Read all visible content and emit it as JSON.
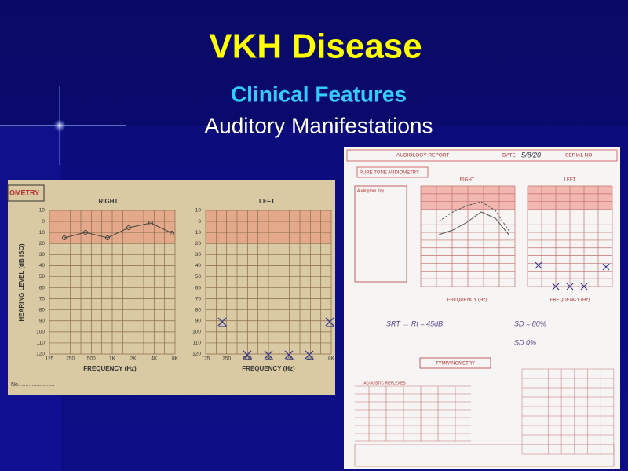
{
  "slide": {
    "title": "VKH Disease",
    "subtitle": "Clinical Features",
    "heading": "Auditory Manifestations"
  },
  "left_audiogram": {
    "header": "OMETRY",
    "right_label": "RIGHT",
    "left_label": "LEFT",
    "y_axis_label": "HEARING LEVEL (dB ISO)",
    "x_axis_label": "FREQUENCY (Hz)",
    "y_ticks": [
      "-10",
      "0",
      "10",
      "20",
      "30",
      "40",
      "50",
      "60",
      "70",
      "80",
      "90",
      "100",
      "110",
      "120"
    ],
    "x_ticks": [
      "125",
      "250",
      "500",
      "1K",
      "2K",
      "4K",
      "8K"
    ],
    "footer": "No. ......................"
  },
  "audiology_report": {
    "title": "AUDIOLOGY REPORT",
    "date_label": "DATE",
    "date": "5/8/20",
    "serial_label": "SERIAL NO.",
    "pure_tone": "PURE TONE AUDIOMETRY",
    "right_label": "RIGHT",
    "left_label": "LEFT",
    "legend_title": "Audiogram Key",
    "x_axis_label": "FREQUENCY (Hz)",
    "tympanometry": "TYMPANOMETRY",
    "acoustic_reflexes": "ACOUSTIC REFLEXES",
    "notes": [
      "SRT → Rt = 45dB",
      "SD = 80%",
      "SD 0%"
    ]
  }
}
